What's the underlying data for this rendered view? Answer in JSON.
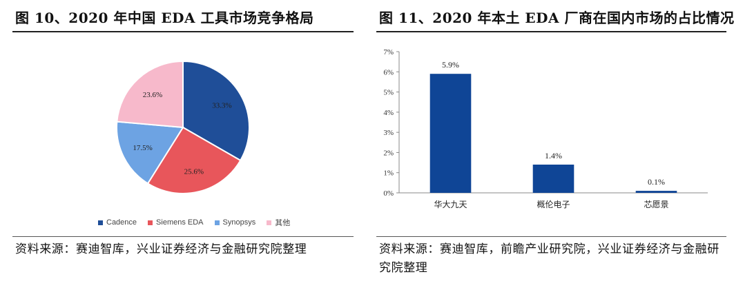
{
  "left_panel": {
    "title": "图 10、2020 年中国 EDA 工具市场竞争格局",
    "source": "资料来源：赛迪智库，兴业证券经济与金融研究院整理"
  },
  "right_panel": {
    "title": "图 11、2020 年本土 EDA 厂商在国内市场的占比情况",
    "source": "资料来源：赛迪智库，前瞻产业研究院，兴业证券经济与金融研究院整理"
  },
  "chart_data": [
    {
      "type": "pie",
      "title": "",
      "slices": [
        {
          "label": "Cadence",
          "value": 33.3,
          "display": "33.3%",
          "color": "#1f4e98"
        },
        {
          "label": "Siemens EDA",
          "value": 25.6,
          "display": "25.6%",
          "color": "#e8565b"
        },
        {
          "label": "Synopsys",
          "value": 17.5,
          "display": "17.5%",
          "color": "#6da3e3"
        },
        {
          "label": "其他",
          "value": 23.6,
          "display": "23.6%",
          "color": "#f7b9cb"
        }
      ],
      "legend_position": "bottom"
    },
    {
      "type": "bar",
      "title": "",
      "categories": [
        "华大九天",
        "概伦电子",
        "芯愿景"
      ],
      "values": [
        5.9,
        1.4,
        0.1
      ],
      "data_labels": [
        "5.9%",
        "1.4%",
        "0.1%"
      ],
      "ylim": [
        0,
        7
      ],
      "yticks": [
        "0%",
        "1%",
        "2%",
        "3%",
        "4%",
        "5%",
        "6%",
        "7%"
      ],
      "xlabel": "",
      "ylabel": "",
      "grid": false,
      "bar_color": "#0f4596"
    }
  ]
}
